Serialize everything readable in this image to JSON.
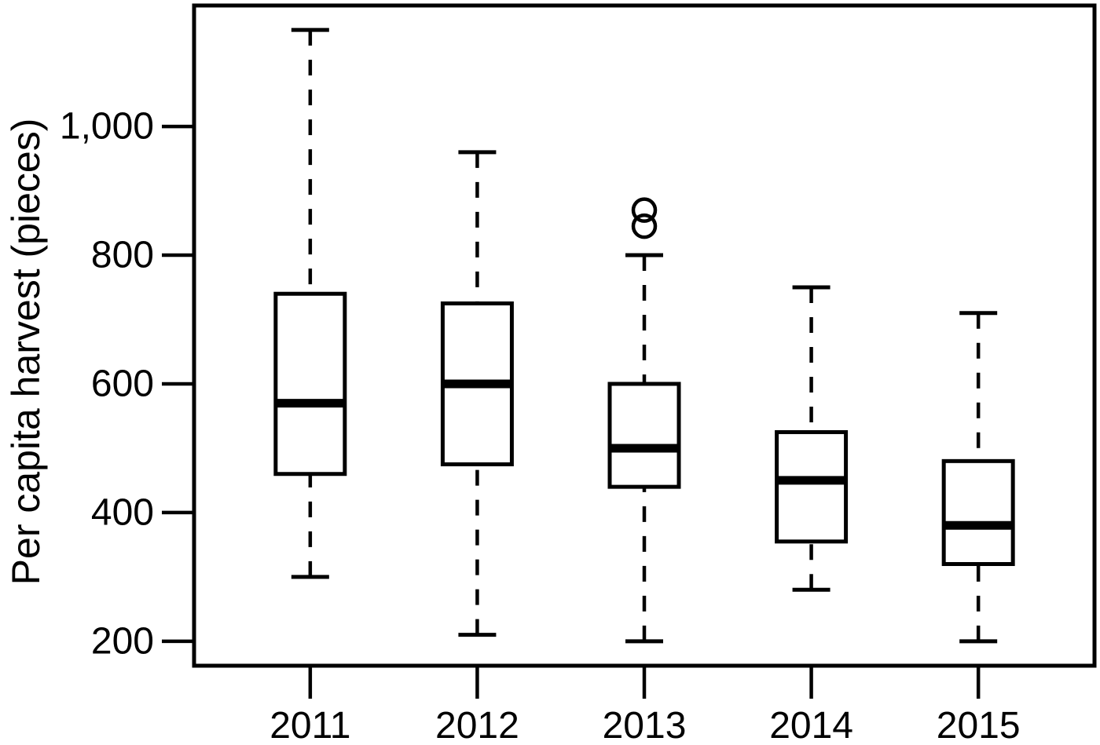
{
  "figure": {
    "background_color": "#ffffff",
    "foreground_color": "#000000"
  },
  "chart_data": {
    "type": "boxplot",
    "title": "",
    "xlabel": "",
    "ylabel": "Per capita harvest (pieces)",
    "categories": [
      "2011",
      "2012",
      "2013",
      "2014",
      "2015"
    ],
    "series": [
      {
        "category": "2011",
        "whisker_low": 300,
        "q1": 460,
        "median": 570,
        "q3": 740,
        "whisker_high": 1150,
        "outliers": []
      },
      {
        "category": "2012",
        "whisker_low": 210,
        "q1": 475,
        "median": 600,
        "q3": 725,
        "whisker_high": 960,
        "outliers": []
      },
      {
        "category": "2013",
        "whisker_low": 200,
        "q1": 440,
        "median": 500,
        "q3": 600,
        "whisker_high": 800,
        "outliers": [
          845,
          870
        ]
      },
      {
        "category": "2014",
        "whisker_low": 280,
        "q1": 355,
        "median": 450,
        "q3": 525,
        "whisker_high": 750,
        "outliers": []
      },
      {
        "category": "2015",
        "whisker_low": 200,
        "q1": 320,
        "median": 380,
        "q3": 480,
        "whisker_high": 710,
        "outliers": []
      }
    ],
    "yticks": [
      {
        "value": 200,
        "label": "200"
      },
      {
        "value": 400,
        "label": "400"
      },
      {
        "value": 600,
        "label": "600"
      },
      {
        "value": 800,
        "label": "800"
      },
      {
        "value": 1000,
        "label": "1,000"
      }
    ],
    "ylim": [
      162,
      1188
    ],
    "grid": false,
    "legend": null,
    "whisker_style": "dashed",
    "colors": {
      "stroke": "#000000",
      "box_fill": "#ffffff",
      "background": "#ffffff"
    }
  }
}
